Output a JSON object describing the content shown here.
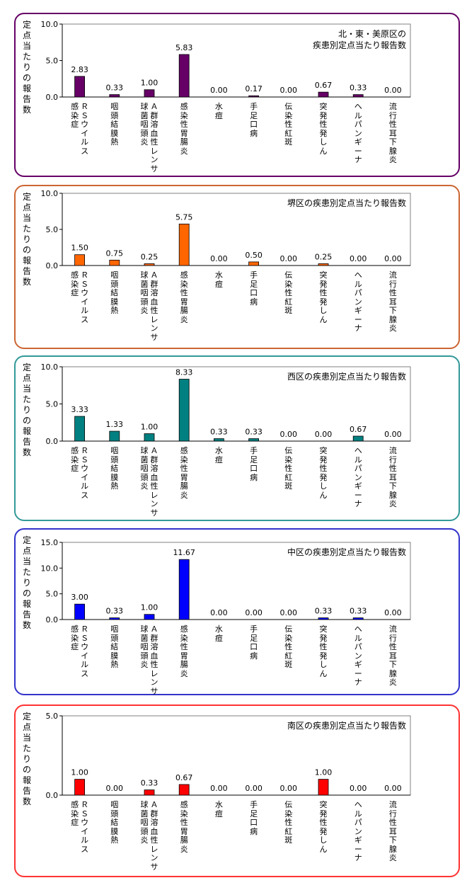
{
  "common": {
    "y_axis_label": "定点当たりの報告数",
    "categories": [
      [
        "ＲＳウイルス",
        "感染症"
      ],
      [
        "咽頭結膜熱"
      ],
      [
        "Ａ群溶血性レンサ",
        "球菌咽頭炎"
      ],
      [
        "感染性胃腸炎"
      ],
      [
        "水痘"
      ],
      [
        "手足口病"
      ],
      [
        "伝染性紅斑"
      ],
      [
        "突発性発しん"
      ],
      [
        "ヘルパンギーナ"
      ],
      [
        "流行性耳下腺炎"
      ]
    ]
  },
  "chart_data": [
    {
      "type": "bar",
      "title": "北・東・美原区の\n疾患別定点当たり報告数",
      "ylabel": "定点当たりの報告数",
      "categories": [
        "ＲＳウイルス感染症",
        "咽頭結膜熱",
        "Ａ群溶血性レンサ球菌咽頭炎",
        "感染性胃腸炎",
        "水痘",
        "手足口病",
        "伝染性紅斑",
        "突発性発しん",
        "ヘルパンギーナ",
        "流行性耳下腺炎"
      ],
      "values": [
        2.83,
        0.33,
        1.0,
        5.83,
        0.0,
        0.17,
        0.0,
        0.67,
        0.33,
        0.0
      ],
      "value_labels": [
        "2.83",
        "0.33",
        "1.00",
        "5.83",
        "0.00",
        "0.17",
        "0.00",
        "0.67",
        "0.33",
        "0.00"
      ],
      "ylim": [
        0,
        10
      ],
      "yticks": [
        "0.0",
        "5.0",
        "10.0"
      ],
      "grid": false,
      "bar_color": "#660066",
      "frame_color": "#660066"
    },
    {
      "type": "bar",
      "title": "堺区の疾患別定点当たり報告数",
      "ylabel": "定点当たりの報告数",
      "categories": [
        "ＲＳウイルス感染症",
        "咽頭結膜熱",
        "Ａ群溶血性レンサ球菌咽頭炎",
        "感染性胃腸炎",
        "水痘",
        "手足口病",
        "伝染性紅斑",
        "突発性発しん",
        "ヘルパンギーナ",
        "流行性耳下腺炎"
      ],
      "values": [
        1.5,
        0.75,
        0.25,
        5.75,
        0.0,
        0.5,
        0.0,
        0.25,
        0.0,
        0.0
      ],
      "value_labels": [
        "1.50",
        "0.75",
        "0.25",
        "5.75",
        "0.00",
        "0.50",
        "0.00",
        "0.25",
        "0.00",
        "0.00"
      ],
      "ylim": [
        0,
        10
      ],
      "yticks": [
        "0.0",
        "5.0",
        "10.0"
      ],
      "grid": false,
      "bar_color": "#ff6600",
      "frame_color": "#cc6633"
    },
    {
      "type": "bar",
      "title": "西区の疾患別定点当たり報告数",
      "ylabel": "定点当たりの報告数",
      "categories": [
        "ＲＳウイルス感染症",
        "咽頭結膜熱",
        "Ａ群溶血性レンサ球菌咽頭炎",
        "感染性胃腸炎",
        "水痘",
        "手足口病",
        "伝染性紅斑",
        "突発性発しん",
        "ヘルパンギーナ",
        "流行性耳下腺炎"
      ],
      "values": [
        3.33,
        1.33,
        1.0,
        8.33,
        0.33,
        0.33,
        0.0,
        0.0,
        0.67,
        0.0
      ],
      "value_labels": [
        "3.33",
        "1.33",
        "1.00",
        "8.33",
        "0.33",
        "0.33",
        "0.00",
        "0.00",
        "0.67",
        "0.00"
      ],
      "ylim": [
        0,
        10
      ],
      "yticks": [
        "0.0",
        "5.0",
        "10.0"
      ],
      "grid": false,
      "bar_color": "#008080",
      "frame_color": "#339999"
    },
    {
      "type": "bar",
      "title": "中区の疾患別定点当たり報告数",
      "ylabel": "定点当たりの報告数",
      "categories": [
        "ＲＳウイルス感染症",
        "咽頭結膜熱",
        "Ａ群溶血性レンサ球菌咽頭炎",
        "感染性胃腸炎",
        "水痘",
        "手足口病",
        "伝染性紅斑",
        "突発性発しん",
        "ヘルパンギーナ",
        "流行性耳下腺炎"
      ],
      "values": [
        3.0,
        0.33,
        1.0,
        11.67,
        0.0,
        0.0,
        0.0,
        0.33,
        0.33,
        0.0
      ],
      "value_labels": [
        "3.00",
        "0.33",
        "1.00",
        "11.67",
        "0.00",
        "0.00",
        "0.00",
        "0.33",
        "0.33",
        "0.00"
      ],
      "ylim": [
        0,
        15
      ],
      "yticks": [
        "0.0",
        "5.0",
        "10.0",
        "15.0"
      ],
      "grid": false,
      "bar_color": "#0000ff",
      "frame_color": "#3333cc"
    },
    {
      "type": "bar",
      "title": "南区の疾患別定点当たり報告数",
      "ylabel": "定点当たりの報告数",
      "categories": [
        "ＲＳウイルス感染症",
        "咽頭結膜熱",
        "Ａ群溶血性レンサ球菌咽頭炎",
        "感染性胃腸炎",
        "水痘",
        "手足口病",
        "伝染性紅斑",
        "突発性発しん",
        "ヘルパンギーナ",
        "流行性耳下腺炎"
      ],
      "values": [
        1.0,
        0.0,
        0.33,
        0.67,
        0.0,
        0.0,
        0.0,
        1.0,
        0.0,
        0.0
      ],
      "value_labels": [
        "1.00",
        "0.00",
        "0.33",
        "0.67",
        "0.00",
        "0.00",
        "0.00",
        "1.00",
        "0.00",
        "0.00"
      ],
      "ylim": [
        0,
        5
      ],
      "yticks": [
        "0.0",
        "5.0"
      ],
      "grid": false,
      "bar_color": "#ff0000",
      "frame_color": "#ff3333"
    }
  ]
}
